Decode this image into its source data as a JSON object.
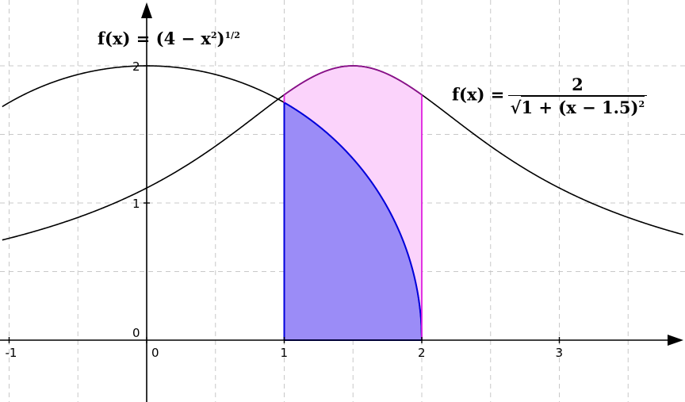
{
  "chart_data": {
    "type": "area",
    "xlim": [
      -1.05,
      3.9
    ],
    "ylim": [
      -0.45,
      2.45
    ],
    "grid": true,
    "x_ticks": [
      -1,
      0,
      1,
      2,
      3
    ],
    "y_ticks": [
      0,
      1,
      2
    ],
    "x_tick_labels": [
      "-1",
      "0",
      "1",
      "2",
      "3"
    ],
    "y_tick_labels": [
      "0",
      "1",
      "2"
    ],
    "series": [
      {
        "expression": "(4 - x^2)^(1/2)",
        "domain": [
          -2,
          2
        ],
        "color": "#000000",
        "highlight_color": "#0000dd",
        "shaded_interval": [
          1,
          2
        ],
        "fill": "#9b8cf7"
      },
      {
        "expression": "2 / sqrt(1 + (x - 1.5)^2)",
        "domain": [
          -1.05,
          3.9
        ],
        "color": "#000000",
        "highlight_color": "#8b0f8b",
        "shaded_interval": [
          1,
          2
        ],
        "fill": "#fbd3fb",
        "edge_color": "#e020e0"
      }
    ],
    "annotations": [
      {
        "text": "f(x) = (4 − x²)^(1/2)",
        "anchor": "upper-left"
      },
      {
        "text": "f(x) = 2 / √(1 + (x − 1.5)²)",
        "anchor": "upper-right"
      }
    ]
  },
  "labels": {
    "f1": {
      "lhs": "f(x) = (4 − x",
      "sq": "2",
      "close": ")",
      "exp": "1/2"
    },
    "f2": {
      "lhs": "f(x) = ",
      "num": "2",
      "den_a": "1 + (x − 1.5)",
      "den_sq": "2",
      "radical": "√"
    }
  }
}
